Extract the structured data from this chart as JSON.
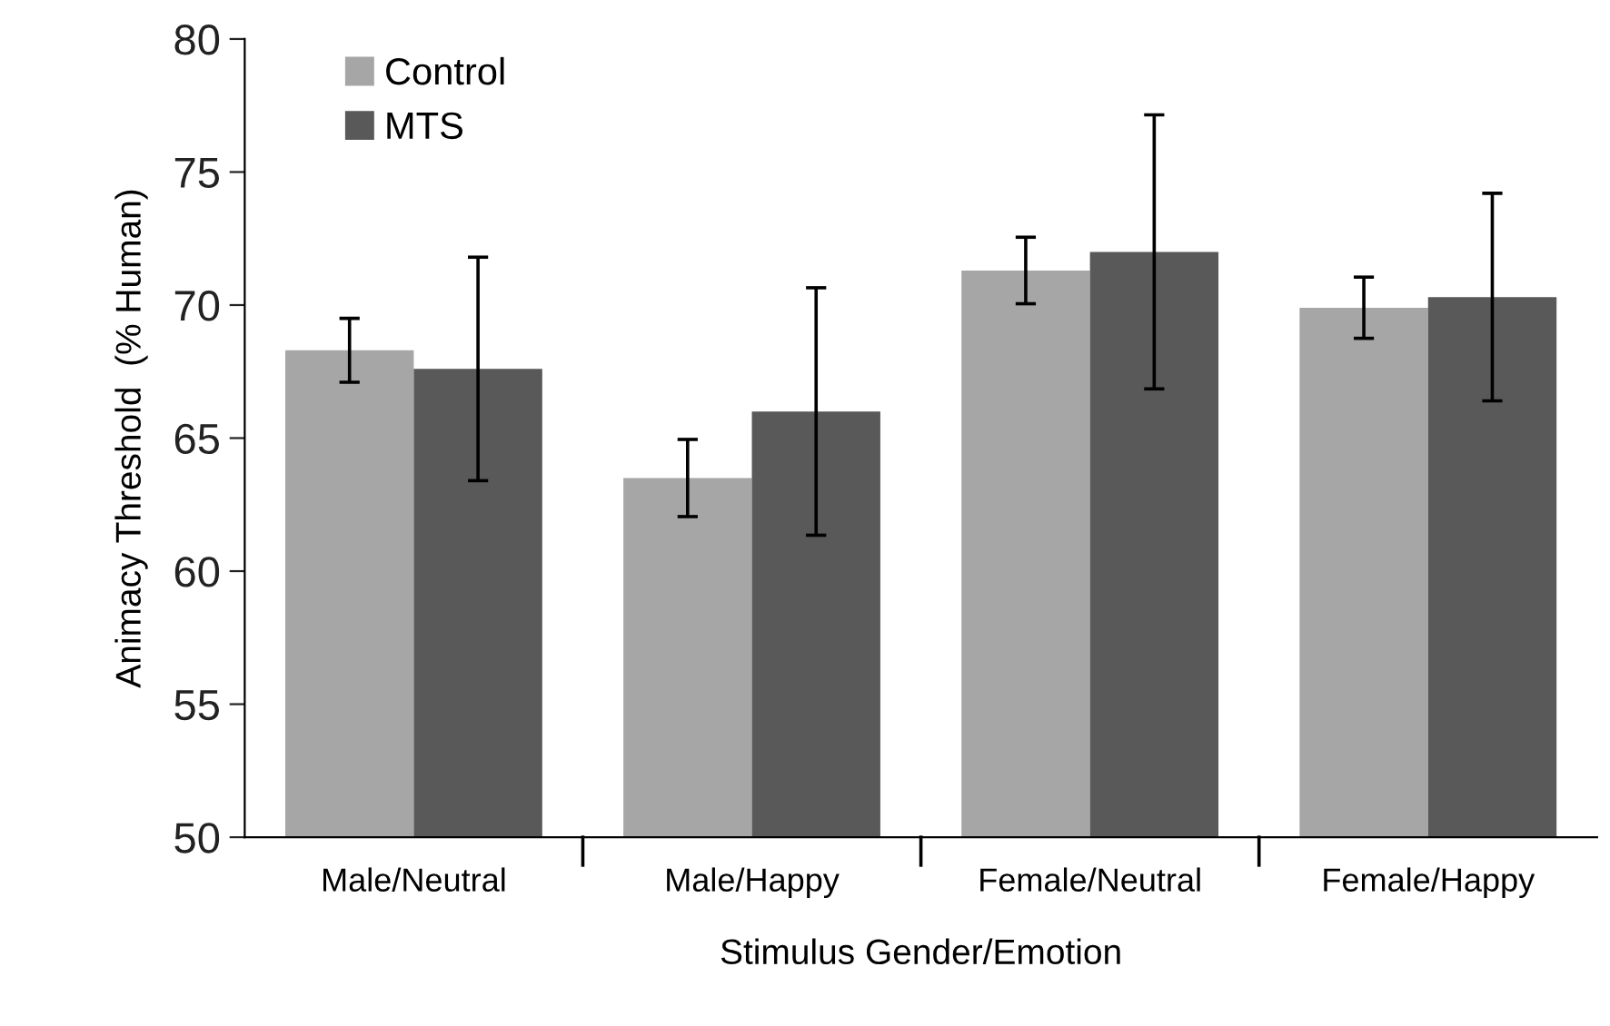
{
  "chart_data": {
    "type": "bar",
    "xlabel": "Stimulus Gender/Emotion",
    "ylabel": "Animacy Threshold  (% Human)",
    "categories": [
      "Male/Neutral",
      "Male/Happy",
      "Female/Neutral",
      "Female/Happy"
    ],
    "series": [
      {
        "name": "Control",
        "color": "#a6a6a6",
        "values": [
          68.3,
          63.5,
          71.3,
          69.9
        ],
        "errors": [
          1.2,
          1.45,
          1.25,
          1.15
        ]
      },
      {
        "name": "MTS",
        "color": "#595959",
        "values": [
          67.6,
          66.0,
          72.0,
          70.3
        ],
        "errors": [
          4.2,
          4.65,
          5.15,
          3.9
        ]
      }
    ],
    "ylim": [
      50,
      80
    ],
    "yticks": [
      50,
      55,
      60,
      65,
      70,
      75,
      80
    ],
    "grid": false,
    "legend": "top left"
  }
}
